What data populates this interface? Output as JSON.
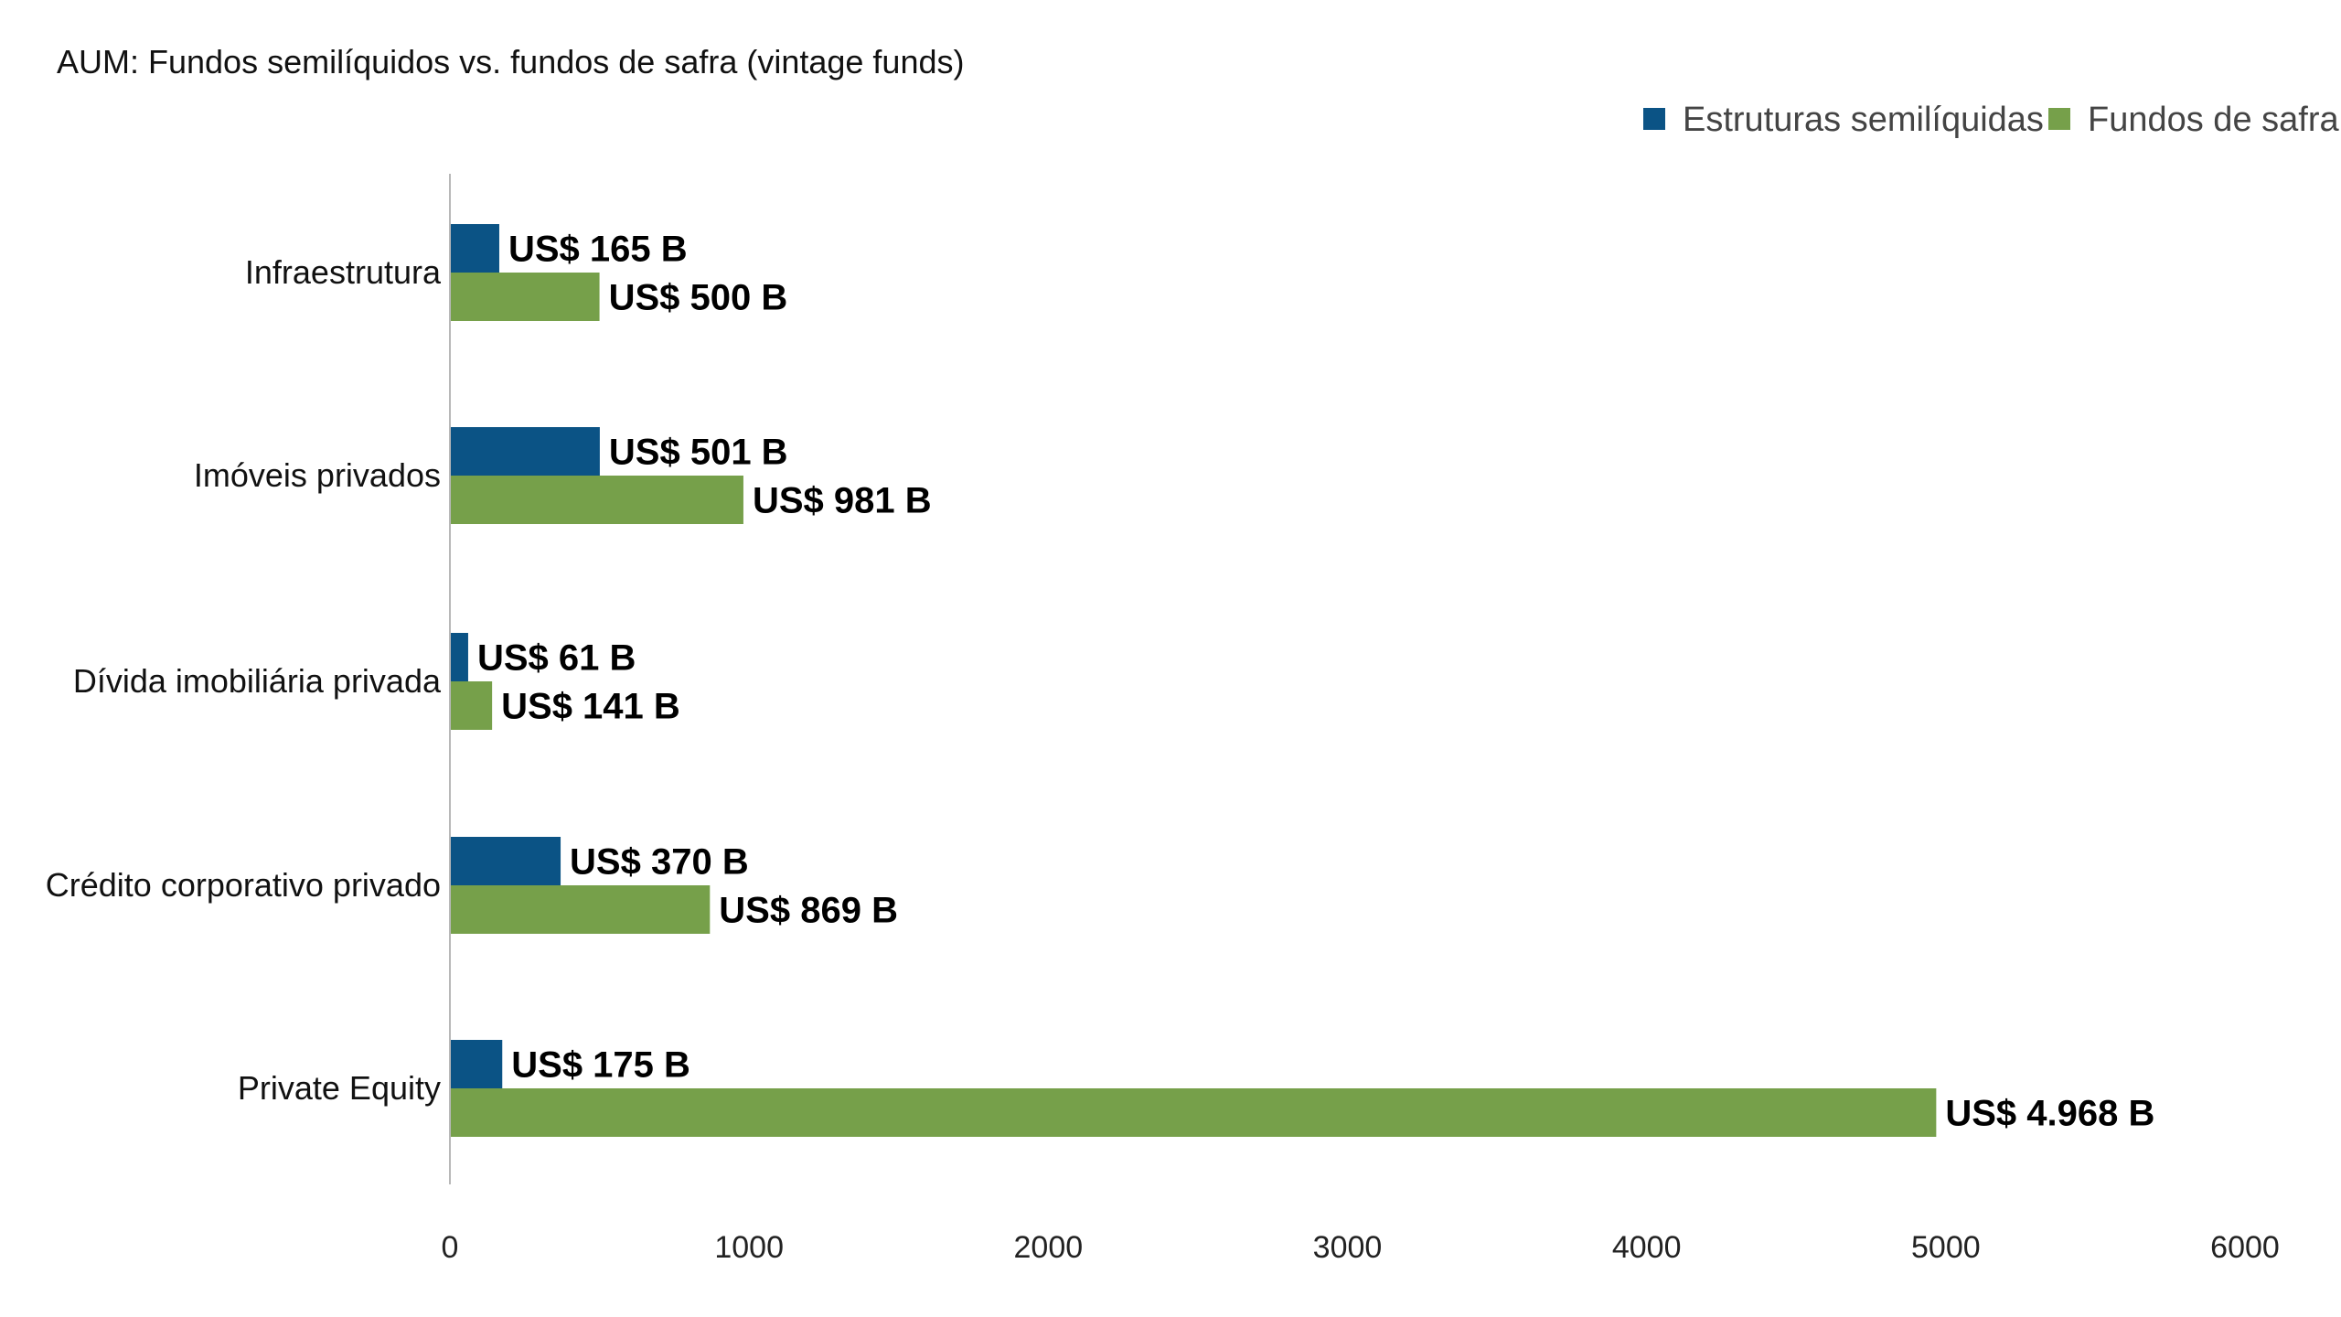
{
  "chart_data": {
    "type": "bar",
    "orientation": "horizontal",
    "title": "AUM: Fundos semilíquidos vs. fundos de safra (vintage funds)",
    "categories": [
      "Infraestrutura",
      "Imóveis privados",
      "Dívida imobiliária privada",
      "Crédito corporativo privado",
      "Private Equity"
    ],
    "series": [
      {
        "name": "Estruturas semilíquidas",
        "color": "#0b5385",
        "values": [
          165,
          501,
          61,
          370,
          175
        ],
        "labels": [
          "US$ 165 B",
          "US$ 501 B",
          "US$ 61 B",
          "US$ 370 B",
          "US$ 175 B"
        ]
      },
      {
        "name": "Fundos de safra",
        "color": "#76a04a",
        "values": [
          500,
          981,
          141,
          869,
          4968
        ],
        "labels": [
          "US$ 500 B",
          "US$ 981 B",
          "US$ 141 B",
          "US$ 869 B",
          "US$ 4.968 B"
        ]
      }
    ],
    "xlim": [
      0,
      6000
    ],
    "xticks": [
      "0",
      "1000",
      "2000",
      "3000",
      "4000",
      "5000",
      "6000"
    ],
    "xtick_values": [
      0,
      1000,
      2000,
      3000,
      4000,
      5000,
      6000
    ],
    "grid": false,
    "legend_position": "top-right"
  }
}
